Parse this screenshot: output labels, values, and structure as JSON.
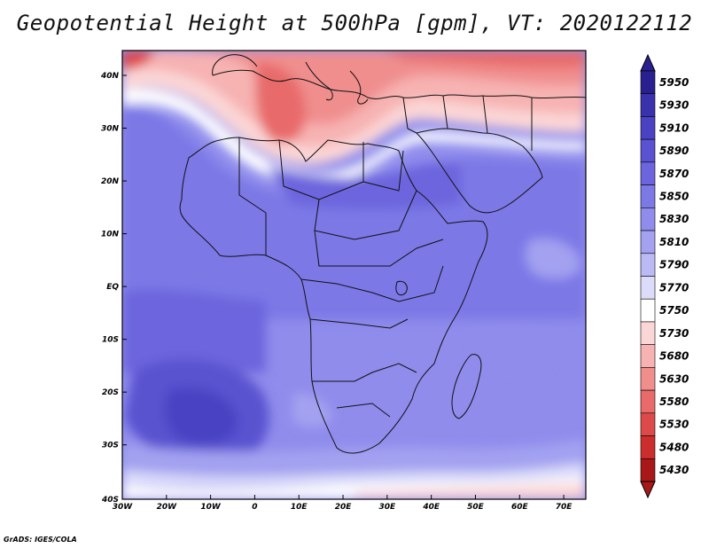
{
  "title": "Geopotential Height at 500hPa [gpm], VT: 2020122112",
  "credit": "GrADS: IGES/COLA",
  "map": {
    "lon_range": [
      -30,
      75
    ],
    "lat_range": [
      -40,
      45
    ],
    "x_ticks": [
      "30W",
      "20W",
      "10W",
      "0",
      "10E",
      "20E",
      "30E",
      "40E",
      "50E",
      "60E",
      "70E"
    ],
    "y_ticks": [
      "40N",
      "30N",
      "20N",
      "10N",
      "EQ",
      "10S",
      "20S",
      "30S",
      "40S"
    ]
  },
  "colorbar": {
    "levels": [
      "5950",
      "5930",
      "5910",
      "5890",
      "5870",
      "5850",
      "5830",
      "5810",
      "5790",
      "5770",
      "5750",
      "5730",
      "5680",
      "5630",
      "5580",
      "5530",
      "5480",
      "5430"
    ],
    "colors": [
      "#2a1f8f",
      "#3a32ad",
      "#4a42c2",
      "#5a52d0",
      "#6c65dd",
      "#7c78e6",
      "#8f8cec",
      "#a3a1f0",
      "#bbbaf5",
      "#dcdcfa",
      "#ffffff",
      "#fbd6d6",
      "#f7b2b2",
      "#f08e8e",
      "#e86a6a",
      "#dd4a4a",
      "#cc2e2e",
      "#a81818"
    ]
  }
}
